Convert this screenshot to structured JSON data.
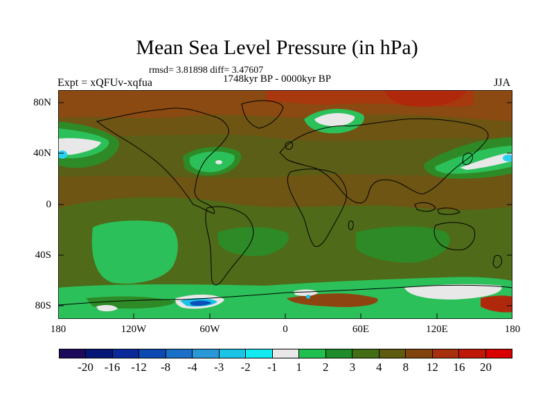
{
  "title": "Mean Sea Level Pressure (in hPa)",
  "stats_line": "rmsd= 3.81898 diff= 3.47607",
  "period": "1748kyr BP - 0000kyr BP",
  "experiment": "Expt = xQFUv-xqfua",
  "season": "JJA",
  "y_axis": {
    "labels": [
      "80N",
      "40N",
      "0",
      "40S",
      "80S"
    ],
    "values": [
      80,
      40,
      0,
      -40,
      -80
    ]
  },
  "x_axis": {
    "labels": [
      "180",
      "120W",
      "60W",
      "0",
      "60E",
      "120E",
      "180"
    ],
    "values": [
      -180,
      -120,
      -60,
      0,
      60,
      120,
      180
    ]
  },
  "colorbar": {
    "labels": [
      "-20",
      "-16",
      "-12",
      "-8",
      "-4",
      "-3",
      "-2",
      "-1",
      "1",
      "2",
      "3",
      "4",
      "8",
      "12",
      "16",
      "20"
    ],
    "colors": [
      "#1e0a5a",
      "#061676",
      "#0a2a9a",
      "#0c4ab2",
      "#1a70c8",
      "#2898d8",
      "#1ac4e6",
      "#10eaf0",
      "#e8e8e8",
      "#20c050",
      "#1e8c28",
      "#426e14",
      "#5e5a0e",
      "#82440e",
      "#a8300e",
      "#c01808",
      "#d80000"
    ]
  },
  "colors": {
    "background": "#6e5514",
    "land_mid": "#7a5a10",
    "light_green": "#2cc05a",
    "green": "#2e8a26",
    "brown_orange": "#8e4410",
    "red": "#b0280c",
    "white": "#e8e8e8",
    "cyan": "#2ad0f0",
    "blue": "#0a50b8"
  }
}
